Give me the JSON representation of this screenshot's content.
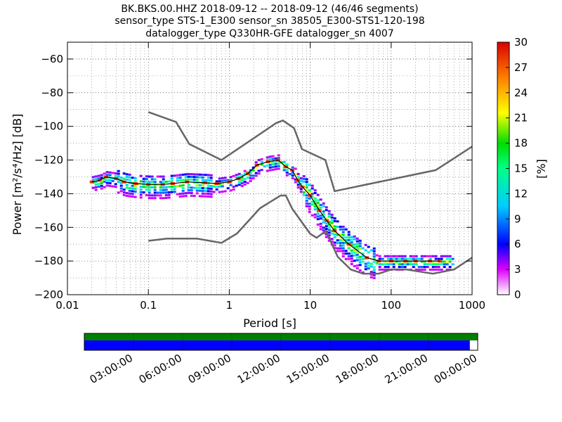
{
  "chart_data": [
    {
      "type": "heatmap",
      "title_lines": [
        "BK.BKS.00.HHZ   2018-09-12 -- 2018-09-12  (46/46 segments)",
        "sensor_type STS-1_E300 sensor_sn 38505_E300-STS1-120-198",
        "datalogger_type Q330HR-GFE datalogger_sn 4007"
      ],
      "xlabel": "Period [s]",
      "ylabel": "Power [m²/s⁴/Hz] [dB]",
      "x_scale": "log",
      "xlim": [
        0.01,
        1000
      ],
      "ylim": [
        -200,
        -50
      ],
      "x_tick_labels": [
        "0.01",
        "0.1",
        "1",
        "10",
        "100",
        "1000"
      ],
      "x_tick_values": [
        0.01,
        0.1,
        1,
        10,
        100,
        1000
      ],
      "y_tick_labels": [
        "−60",
        "−80",
        "−100",
        "−120",
        "−140",
        "−160",
        "−180",
        "−200"
      ],
      "y_tick_values": [
        -60,
        -80,
        -100,
        -120,
        -140,
        -160,
        -180,
        -200
      ],
      "grid": true,
      "colorbar": {
        "label": "[%]",
        "range": [
          0,
          30
        ],
        "tick_labels": [
          "0",
          "3",
          "6",
          "9",
          "12",
          "15",
          "18",
          "21",
          "24",
          "27",
          "30"
        ],
        "tick_values": [
          0,
          3,
          6,
          9,
          12,
          15,
          18,
          21,
          24,
          27,
          30
        ]
      },
      "noise_model_high": {
        "period": [
          0.1,
          0.22,
          0.32,
          0.8,
          3.8,
          4.6,
          6.3,
          7.9,
          15.4,
          20,
          354.8,
          1000
        ],
        "power": [
          -91.5,
          -97.4,
          -110.5,
          -120,
          -98,
          -96.5,
          -101,
          -113.5,
          -120,
          -138.5,
          -126,
          -112
        ]
      },
      "noise_model_low": {
        "period": [
          0.1,
          0.17,
          0.4,
          0.8,
          1.24,
          2.4,
          4.3,
          5,
          6,
          10,
          12,
          15.6,
          21.9,
          31.6,
          45,
          70,
          101,
          154,
          328,
          600,
          1000
        ],
        "power": [
          -168,
          -166.7,
          -166.7,
          -169.2,
          -163.7,
          -148.6,
          -141.1,
          -141.1,
          -149,
          -163.8,
          -166.2,
          -162.1,
          -177.5,
          -185,
          -187.5,
          -187.5,
          -185,
          -185,
          -187.5,
          -185,
          -178
        ]
      },
      "mode_curve": {
        "period": [
          0.02,
          0.025,
          0.03,
          0.04,
          0.05,
          0.07,
          0.1,
          0.15,
          0.2,
          0.3,
          0.5,
          0.7,
          1,
          1.3,
          1.7,
          2.2,
          3,
          4,
          5,
          6,
          7,
          8,
          10,
          13,
          16,
          20,
          30,
          50,
          70,
          100,
          150,
          200,
          300,
          400
        ],
        "power": [
          -133,
          -132,
          -130,
          -131,
          -133,
          -134,
          -134.5,
          -134.5,
          -134,
          -133,
          -133.5,
          -134,
          -133,
          -131,
          -128,
          -123,
          -121,
          -120,
          -124,
          -126,
          -132,
          -136,
          -141,
          -150,
          -156,
          -162,
          -170,
          -178,
          -180,
          -180,
          -180,
          -180,
          -180,
          -180
        ]
      },
      "density_bands": [
        {
          "period": [
            0.02,
            0.6
          ],
          "power": [
            -140,
            -122
          ]
        },
        {
          "period": [
            0.6,
            8
          ],
          "power": [
            -132,
            -116
          ]
        },
        {
          "period": [
            8,
            40
          ],
          "power": [
            -182,
            -136
          ]
        },
        {
          "period": [
            40,
            400
          ],
          "power": [
            -186,
            -174
          ]
        },
        {
          "period": [
            400,
            600
          ],
          "power": [
            -180,
            -168
          ]
        }
      ]
    },
    {
      "type": "bar",
      "role": "data-coverage",
      "x_tick_labels": [
        "03:00:00",
        "06:00:00",
        "09:00:00",
        "12:00:00",
        "15:00:00",
        "18:00:00",
        "21:00:00",
        "00:00:00"
      ],
      "coverage_fraction": 0.98,
      "colors": {
        "available": "#007f00",
        "used": "#0000ff"
      }
    }
  ]
}
